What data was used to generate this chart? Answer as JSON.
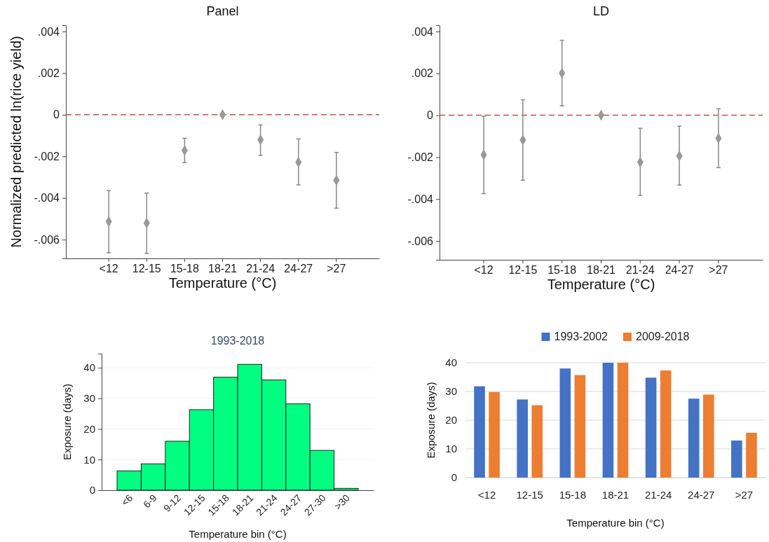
{
  "chart_data": [
    {
      "type": "scatter",
      "title": "Panel",
      "xlabel": "Temperature (°C)",
      "ylabel": "Normalized predicted ln(rice yield)",
      "categories": [
        "<12",
        "12-15",
        "15-18",
        "18-21",
        "21-24",
        "24-27",
        ">27"
      ],
      "series": [
        {
          "color": "#999999",
          "values": [
            -0.00513,
            -0.0052,
            -0.00171,
            0,
            -0.00121,
            -0.00228,
            -0.00315
          ],
          "errors": [
            [
              -0.00663,
              -0.00364
            ],
            [
              -0.00666,
              -0.00376
            ],
            [
              -0.0023,
              -0.00113
            ],
            null,
            [
              -0.00195,
              -0.00049
            ],
            [
              -0.00337,
              -0.00116
            ],
            [
              -0.00449,
              -0.00181
            ]
          ]
        }
      ],
      "ylim": [
        -0.0069,
        0.0043
      ],
      "yticks": [
        {
          "value": -0.006,
          "label": "-.006"
        },
        {
          "value": -0.004,
          "label": "-.004"
        },
        {
          "value": -0.002,
          "label": "-.002"
        },
        0,
        {
          "value": 0.002,
          "label": ".002"
        },
        {
          "value": 0.004,
          "label": ".004"
        }
      ],
      "ref_lines": [
        {
          "axis": "y",
          "value": 0,
          "color": "#c0504d",
          "line_style": "dashed"
        }
      ],
      "marker": "diamond",
      "grid": false
    },
    {
      "type": "scatter",
      "title": "LD",
      "xlabel": "Temperature (°C)",
      "categories": [
        "<12",
        "12-15",
        "15-18",
        "18-21",
        "21-24",
        "24-27",
        ">27"
      ],
      "series": [
        {
          "color": "#999999",
          "values": [
            -0.00189,
            -0.00118,
            0.00201,
            0,
            -0.00224,
            -0.00194,
            -0.0011
          ],
          "errors": [
            [
              -0.00374,
              -5e-05
            ],
            [
              -0.0031,
              0.00074
            ],
            [
              0.00045,
              0.00358
            ],
            null,
            [
              -0.00383,
              -0.00062
            ],
            [
              -0.00333,
              -0.00052
            ],
            [
              -0.0025,
              0.00031
            ]
          ]
        }
      ],
      "ylim": [
        -0.0069,
        0.0043
      ],
      "yticks": [
        {
          "value": -0.006,
          "label": "-.006"
        },
        {
          "value": -0.004,
          "label": "-.004"
        },
        {
          "value": -0.002,
          "label": "-.002"
        },
        0,
        {
          "value": 0.002,
          "label": ".002"
        },
        {
          "value": 0.004,
          "label": ".004"
        }
      ],
      "ref_lines": [
        {
          "axis": "y",
          "value": 0,
          "color": "#c0504d",
          "line_style": "dashed"
        }
      ],
      "marker": "diamond",
      "grid": false
    },
    {
      "type": "bar",
      "title": "1993-2018",
      "xlabel": "Temperature bin (°C)",
      "ylabel": "Exposure (days)",
      "categories": [
        "<6",
        "6-9",
        "9-12",
        "12-15",
        "15-18",
        "18-21",
        "21-24",
        "24-27",
        "27-30",
        ">30"
      ],
      "series": [
        {
          "color": "#00ff80",
          "values": [
            6.3,
            8.6,
            16,
            26.3,
            36.9,
            41.1,
            36,
            28.2,
            13,
            0.6
          ]
        }
      ],
      "ylim": [
        0,
        44.6
      ],
      "yticks": [
        0,
        10,
        20,
        30,
        40
      ],
      "grid": "y"
    },
    {
      "type": "bar",
      "xlabel": "Temperature bin (°C)",
      "ylabel": "Exposure (days)",
      "categories": [
        "<12",
        "12-15",
        "15-18",
        "18-21",
        "21-24",
        "24-27",
        ">27"
      ],
      "series": [
        {
          "name": "1993-2002",
          "color": "#4472c4",
          "values": [
            31.8,
            27.2,
            38,
            40,
            34.8,
            27.5,
            12.9
          ]
        },
        {
          "name": "2009-2018",
          "color": "#ed7d31",
          "values": [
            29.8,
            25.2,
            35.7,
            40,
            37.3,
            28.9,
            15.6
          ]
        }
      ],
      "ylim": [
        0,
        40
      ],
      "yticks": [
        0,
        10,
        20,
        30,
        40
      ],
      "grid": "y",
      "legend": "top"
    }
  ]
}
